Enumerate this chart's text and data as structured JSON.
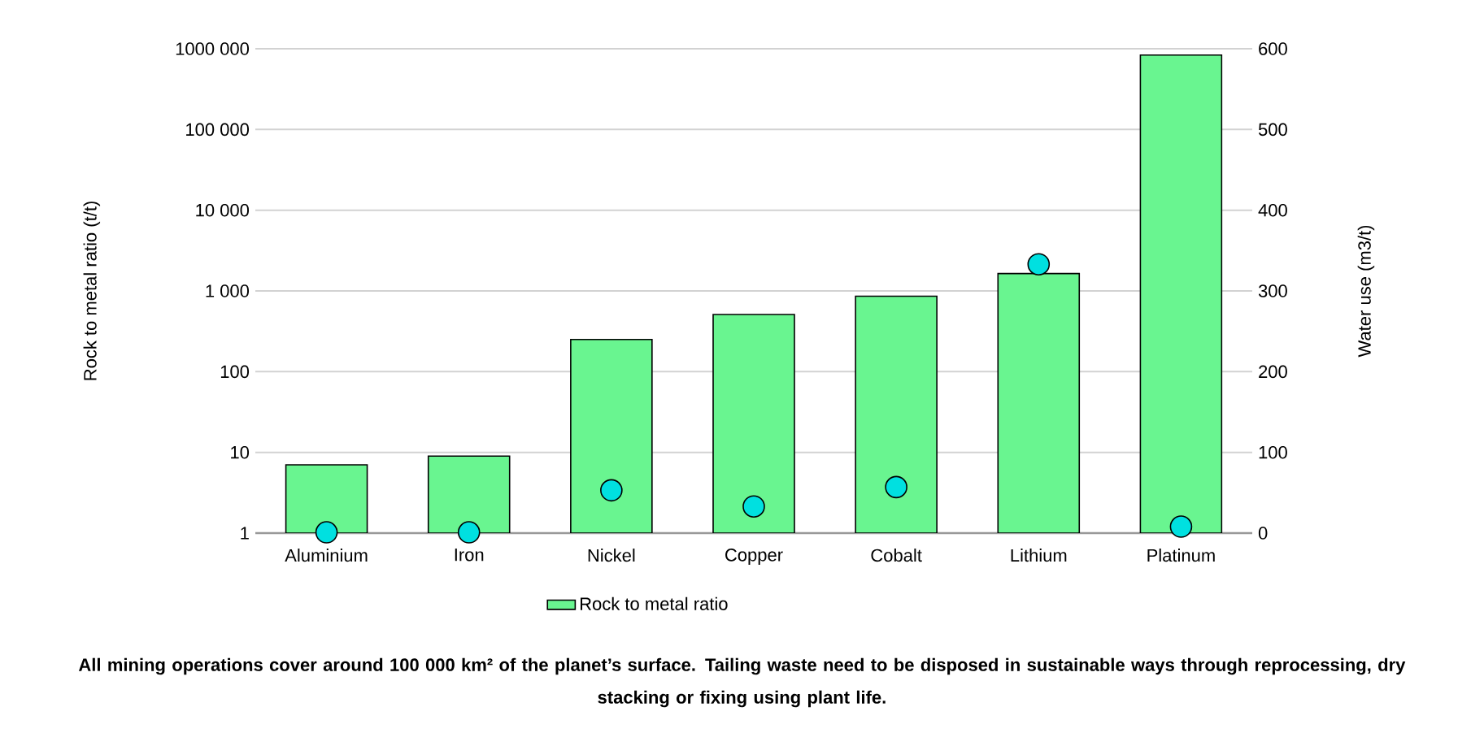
{
  "chart_data": {
    "type": "bar",
    "categories": [
      "Aluminium",
      "Iron",
      "Nickel",
      "Copper",
      "Cobalt",
      "Lithium",
      "Platinum"
    ],
    "series": [
      {
        "name": "Rock to metal ratio",
        "color": "#69f590",
        "values": [
          7,
          9,
          250,
          510,
          860,
          1640,
          835000
        ]
      },
      {
        "type": "scatter",
        "axis": "y2",
        "color": "#00e0e0",
        "marker": "circle",
        "values": [
          1,
          1,
          53,
          33,
          57,
          333,
          8
        ]
      }
    ],
    "log": "y",
    "ylim": [
      1,
      1000000
    ],
    "yticks": [
      1,
      10,
      100,
      {
        "value": 1000,
        "label": "1 000"
      },
      {
        "value": 10000,
        "label": "10 000"
      },
      {
        "value": 100000,
        "label": "100 000"
      },
      {
        "value": 1000000,
        "label": "1000 000"
      }
    ],
    "y2lim": [
      0,
      600
    ],
    "y2ticks": [
      0,
      100,
      200,
      300,
      400,
      500,
      600
    ],
    "ylabel": "Rock to metal ratio (t/t)",
    "y2label": "Water use (m3/t)",
    "grid": "y",
    "legend": "bottom",
    "annotations": [
      "All mining operations cover around 100 000 km² of the planet’s surface. Tailing waste need to be disposed in sustainable ways through reprocessing, dry stacking or fixing using plant life."
    ]
  }
}
